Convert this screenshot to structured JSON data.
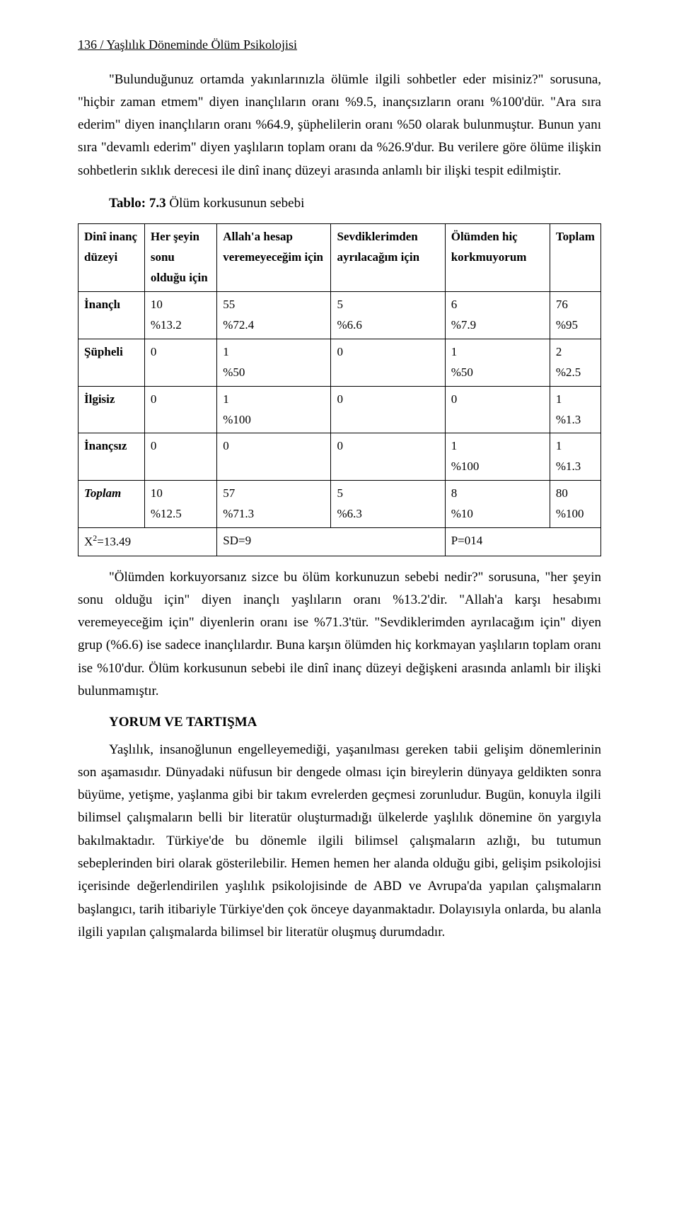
{
  "header": "136 / Yaşlılık Döneminde Ölüm Psikolojisi",
  "para1": "\"Bulunduğunuz ortamda yakınlarınızla ölümle ilgili sohbetler eder misiniz?\" sorusuna, \"hiçbir zaman etmem\" diyen inançlıların oranı %9.5, inançsızların oranı %100'dür. \"Ara sıra ederim\" diyen inançlıların oranı %64.9, şüphelilerin oranı %50 olarak bulunmuştur. Bunun yanı sıra \"devamlı ederim\" diyen yaşlıların toplam oranı da %26.9'dur. Bu verilere göre ölüme ilişkin sohbetlerin sıklık derecesi ile dinî inanç düzeyi arasında anlamlı bir ilişki tespit edilmiştir.",
  "table_title_bold": "Tablo: 7.3",
  "table_title_rest": " Ölüm korkusunun sebebi",
  "table": {
    "columns": [
      "Dinî inanç düzeyi",
      "Her şeyin sonu olduğu için",
      "Allah'a hesap veremeyeceğim için",
      "Sevdiklerimden ayrılacağım için",
      "Ölümden hiç korkmuyorum",
      "Toplam"
    ],
    "rows": [
      [
        "İnançlı",
        "10\n%13.2",
        "55\n%72.4",
        "5\n%6.6",
        "6\n%7.9",
        "76\n%95"
      ],
      [
        "Şüpheli",
        "0",
        "1\n%50",
        "0",
        "1\n%50",
        "2\n%2.5"
      ],
      [
        "İlgisiz",
        "0",
        "1\n%100",
        "0",
        "0",
        "1\n%1.3"
      ],
      [
        "İnançsız",
        "0",
        "0",
        "0",
        "1\n%100",
        "1\n%1.3"
      ],
      [
        "Toplam",
        "10\n%12.5",
        "57\n%71.3",
        "5\n%6.3",
        "8\n%10",
        "80\n%100"
      ]
    ],
    "footer": [
      "X",
      "=13.49",
      "",
      "SD=9",
      "",
      "P=014",
      ""
    ]
  },
  "para2": "\"Ölümden korkuyorsanız sizce bu ölüm korkunuzun sebebi nedir?\" sorusuna, \"her şeyin sonu olduğu için\" diyen inançlı yaşlıların oranı %13.2'dir. \"Allah'a karşı hesabımı veremeyeceğim için\" diyenlerin oranı ise %71.3'tür. \"Sevdiklerimden ayrılacağım için\" diyen grup (%6.6) ise sadece inançlılardır. Buna karşın ölümden hiç korkmayan yaşlıların toplam oranı ise %10'dur. Ölüm korkusunun sebebi ile dinî inanç düzeyi değişkeni arasında anlamlı bir ilişki bulunmamıştır.",
  "section_head": "YORUM VE TARTIŞMA",
  "para3": "Yaşlılık, insanoğlunun engelleyemediği, yaşanılması gereken tabii gelişim dönemlerinin son aşamasıdır. Dünyadaki nüfusun bir dengede olması için bireylerin dünyaya geldikten sonra büyüme, yetişme, yaşlanma gibi bir takım evrelerden geçmesi zorunludur. Bugün, konuyla ilgili bilimsel çalışmaların belli bir literatür oluşturmadığı ülkelerde yaşlılık dönemine ön yargıyla bakılmaktadır. Türkiye'de bu dönemle ilgili bilimsel çalışmaların azlığı, bu tutumun sebeplerinden biri olarak gösterilebilir. Hemen hemen her alanda olduğu gibi, gelişim psikolojisi içerisinde değerlendirilen yaşlılık psikolojisinde de ABD ve Avrupa'da yapılan çalışmaların başlangıcı, tarih itibariyle Türkiye'den çok önceye dayanmaktadır. Dolayısıyla onlarda, bu alanla ilgili yapılan çalışmalarda bilimsel bir literatür oluşmuş durumdadır."
}
